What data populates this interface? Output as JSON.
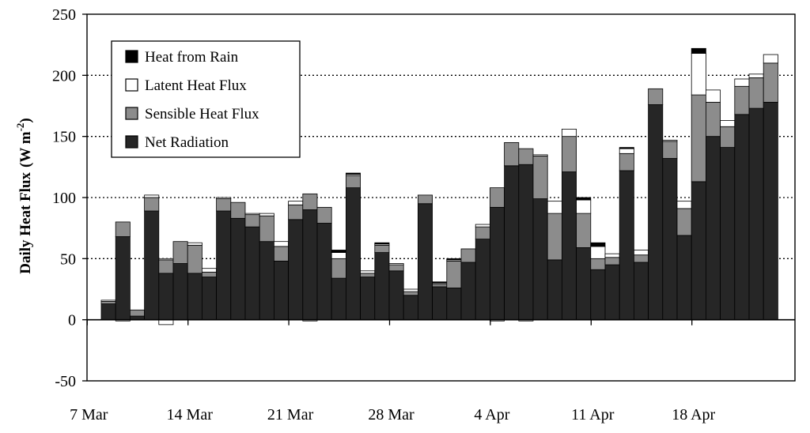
{
  "chart_data": {
    "type": "bar",
    "stacked": true,
    "ylabel": "Daily Heat Flux",
    "ylabel_unit_prefix": "(W m",
    "ylabel_unit_exp": "-2",
    "ylabel_unit_suffix": ")",
    "ylim": [
      -50,
      250
    ],
    "yticks": [
      -50,
      0,
      50,
      100,
      150,
      200,
      250
    ],
    "gridlines": [
      50,
      100,
      150,
      200
    ],
    "grid_style": "dotted",
    "legend_position": "top-left",
    "x_tick_labels": [
      "7 Mar",
      "14 Mar",
      "21 Mar",
      "28 Mar",
      "4 Apr",
      "11 Apr",
      "18 Apr"
    ],
    "days": [
      "7 Mar",
      "8 Mar",
      "9 Mar",
      "10 Mar",
      "11 Mar",
      "12 Mar",
      "13 Mar",
      "14 Mar",
      "15 Mar",
      "16 Mar",
      "17 Mar",
      "18 Mar",
      "19 Mar",
      "20 Mar",
      "21 Mar",
      "22 Mar",
      "23 Mar",
      "24 Mar",
      "25 Mar",
      "26 Mar",
      "27 Mar",
      "28 Mar",
      "29 Mar",
      "30 Mar",
      "31 Mar",
      "1 Apr",
      "2 Apr",
      "3 Apr",
      "4 Apr",
      "5 Apr",
      "6 Apr",
      "7 Apr",
      "8 Apr",
      "9 Apr",
      "10 Apr",
      "11 Apr",
      "12 Apr",
      "13 Apr",
      "14 Apr",
      "15 Apr",
      "16 Apr",
      "17 Apr",
      "18 Apr",
      "19 Apr",
      "20 Apr",
      "21 Apr",
      "22 Apr",
      "23 Apr"
    ],
    "series": [
      {
        "name": "Net Radiation",
        "color": "#262626",
        "values": [
          13,
          68,
          3,
          89,
          38,
          46,
          38,
          35,
          89,
          83,
          76,
          64,
          48,
          82,
          90,
          79,
          34,
          108,
          35,
          55,
          40,
          20,
          95,
          27,
          26,
          47,
          66,
          92,
          126,
          127,
          99,
          49,
          121,
          59,
          41,
          45,
          122,
          47,
          176,
          132,
          69,
          113,
          150,
          141,
          168,
          173,
          178,
          0
        ]
      },
      {
        "name": "Sensible Heat Flux",
        "color": "#8c8c8c",
        "values": [
          2,
          12,
          5,
          11,
          11,
          18,
          23,
          4,
          10,
          13,
          10,
          21,
          12,
          12,
          13,
          13,
          16,
          10,
          3,
          6,
          5,
          3,
          7,
          2,
          22,
          11,
          10,
          16,
          19,
          13,
          35,
          38,
          29,
          28,
          9,
          6,
          14,
          6,
          13,
          14,
          22,
          71,
          28,
          17,
          23,
          25,
          32,
          0
        ]
      },
      {
        "name": "Latent Heat Flux",
        "color": "#ffffff",
        "values": [
          1,
          0,
          0,
          2,
          1,
          0,
          2,
          3,
          1,
          0,
          1,
          2,
          4,
          3,
          0,
          0,
          5,
          1,
          2,
          1,
          1,
          2,
          0,
          1,
          1,
          0,
          2,
          0,
          0,
          0,
          1,
          10,
          6,
          11,
          10,
          3,
          4,
          4,
          0,
          1,
          6,
          34,
          10,
          5,
          6,
          3,
          7,
          0
        ]
      },
      {
        "name": "Heat from Rain",
        "color": "#000000",
        "values": [
          0,
          0,
          0,
          0,
          0,
          0,
          0,
          0,
          0,
          0,
          0,
          0,
          0,
          0,
          0,
          0,
          2,
          1,
          0,
          1,
          0,
          0,
          0,
          1,
          1,
          0,
          0,
          0,
          0,
          0,
          0,
          0,
          0,
          2,
          3,
          0,
          1,
          0,
          0,
          0,
          0,
          4,
          0,
          0,
          0,
          0,
          0,
          0
        ]
      }
    ],
    "negative_values": {
      "Latent Heat Flux": [
        0,
        -1,
        0,
        0,
        -4,
        0,
        0,
        0,
        0,
        0,
        0,
        0,
        0,
        0,
        -1,
        0,
        0,
        0,
        0,
        0,
        0,
        0,
        0,
        0,
        0,
        0,
        0,
        -1,
        0,
        -1,
        0,
        0,
        0,
        0,
        0,
        0,
        0,
        0,
        0,
        0,
        0,
        0,
        0,
        0,
        0,
        0,
        0,
        0
      ]
    },
    "legend_order": [
      "Heat from Rain",
      "Latent Heat Flux",
      "Sensible Heat Flux",
      "Net Radiation"
    ]
  }
}
